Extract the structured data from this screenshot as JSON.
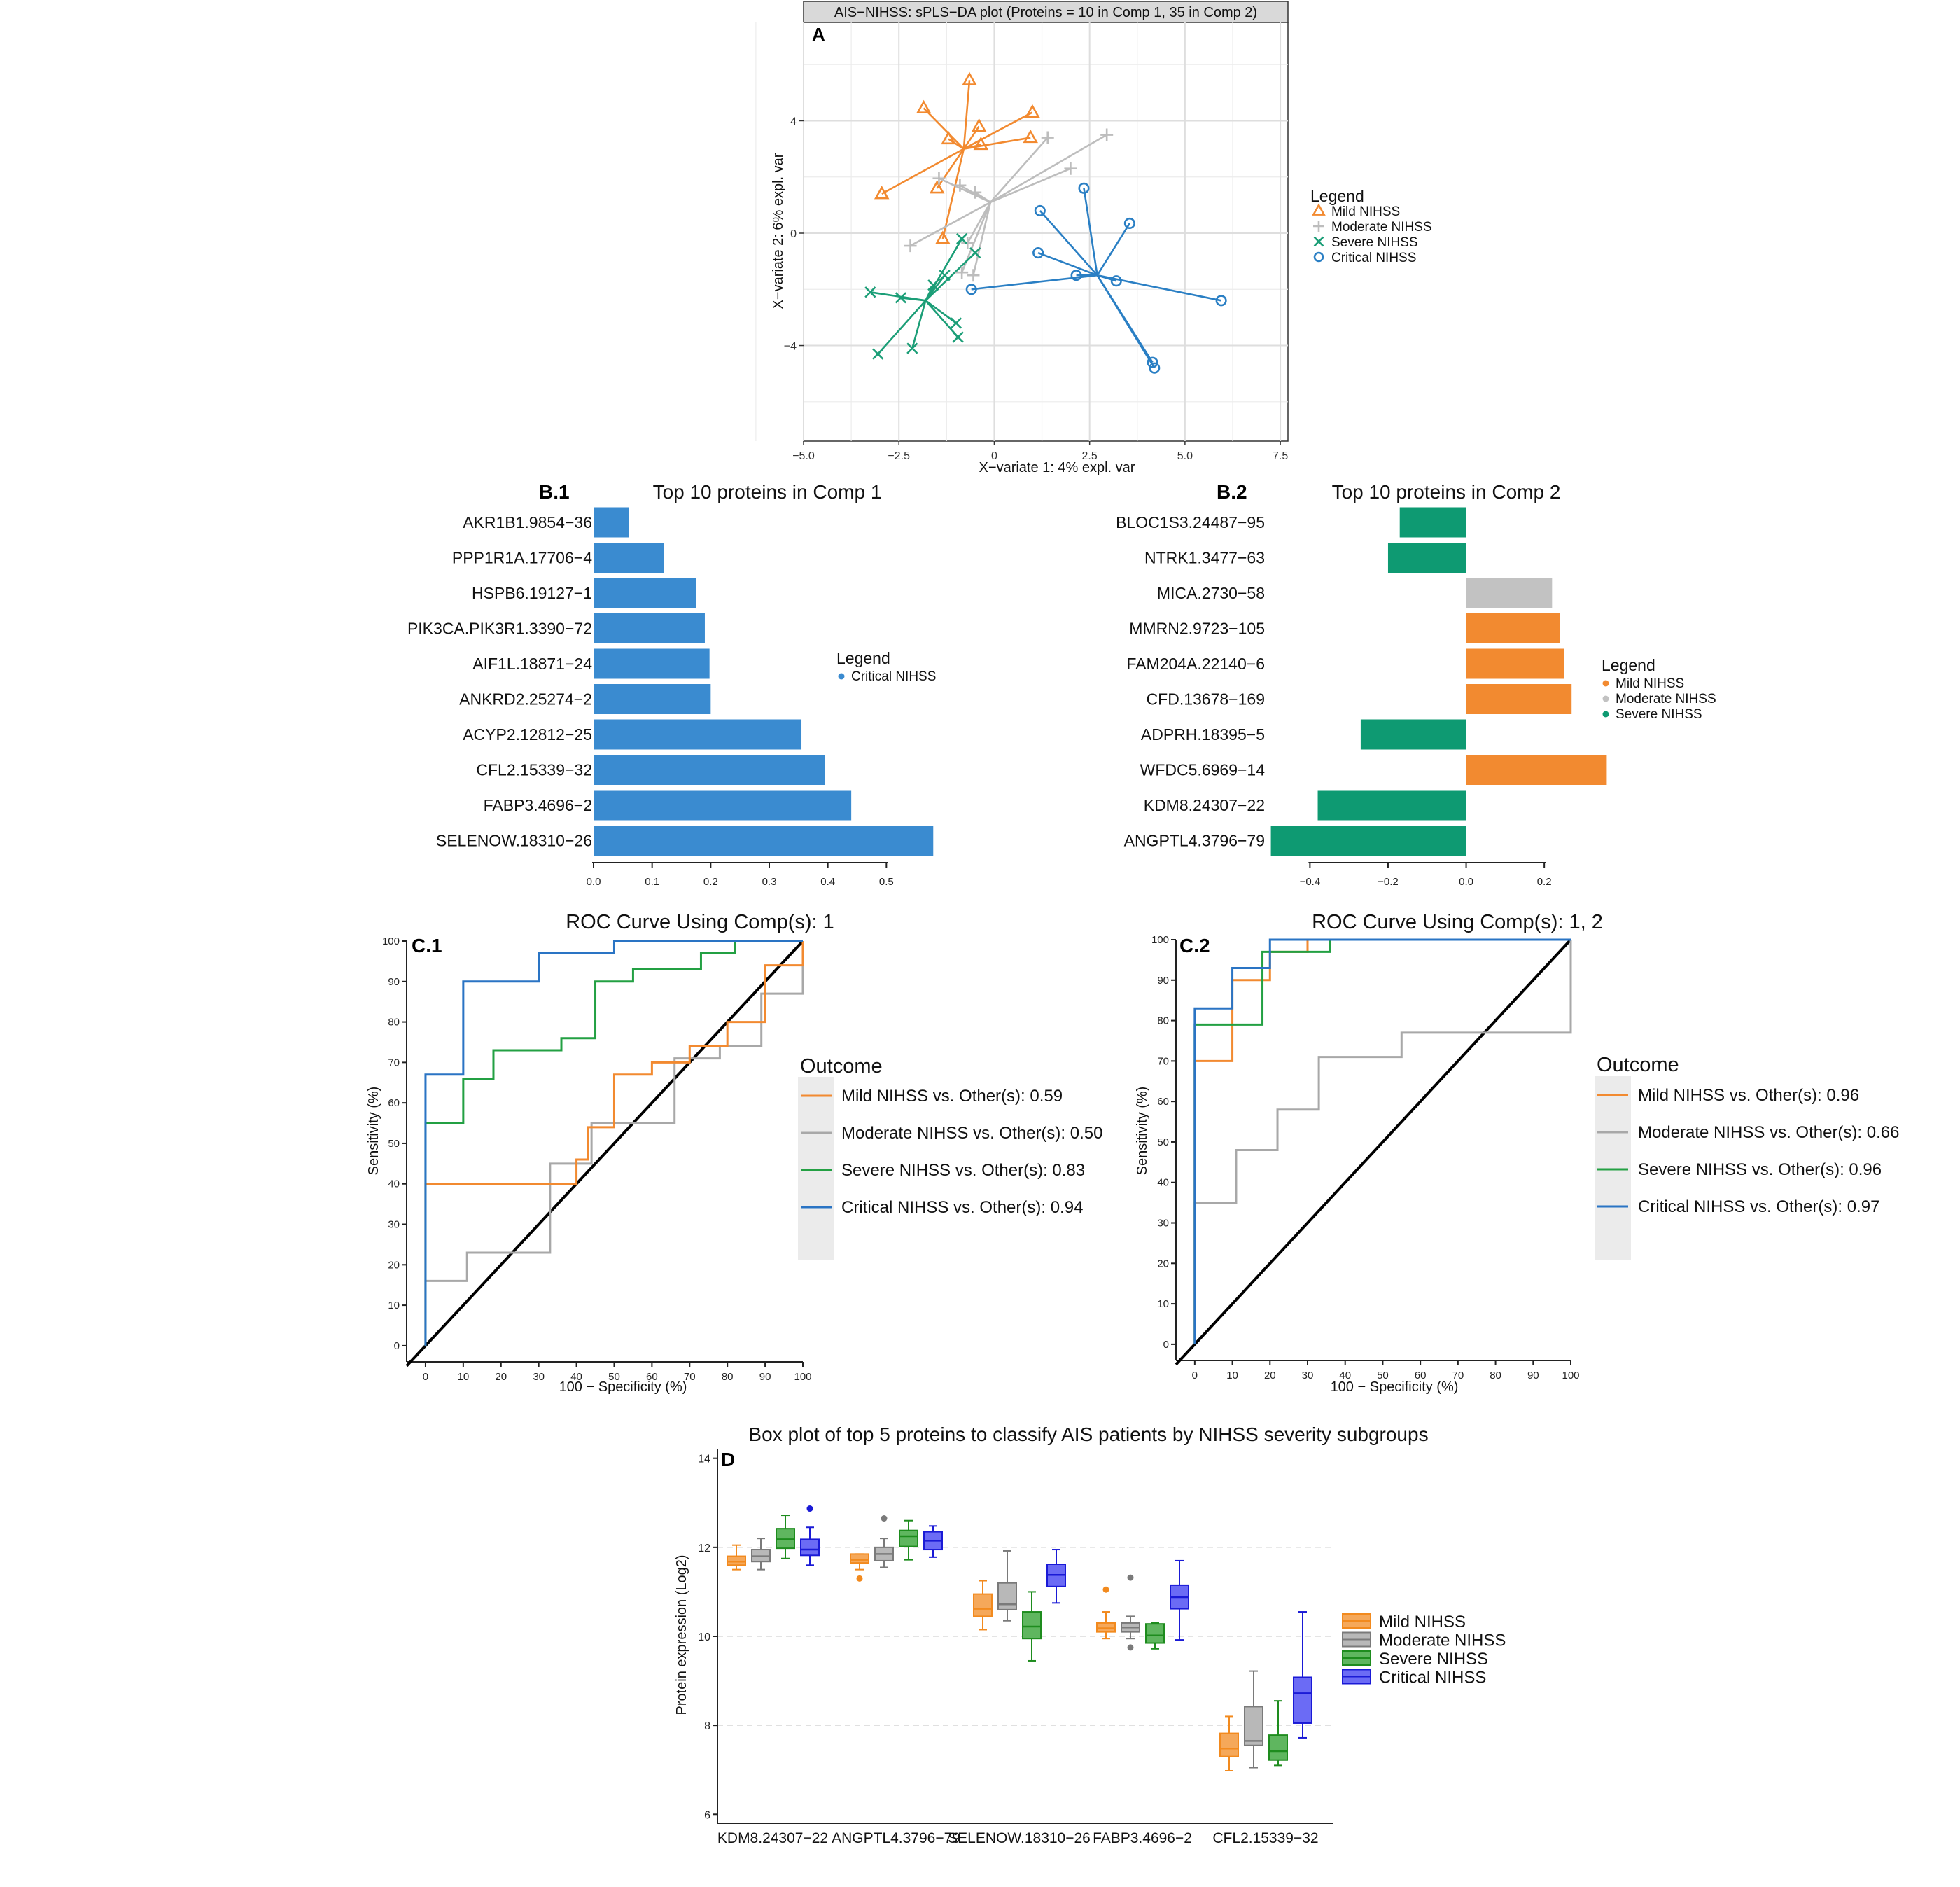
{
  "figure": {
    "panel_letters": {
      "A": "A",
      "B1": "B.1",
      "B2": "B.2",
      "C1": "C.1",
      "C2": "C.2",
      "D": "D"
    },
    "colors": {
      "mild": "#f28a30",
      "moderate": "#bdbdbd",
      "severe": "#1b9e77",
      "critical": "#2a7fc4",
      "bar_blue": "#3a8bd0",
      "bar_green": "#0e9a72",
      "bar_orange": "#f28a30",
      "bar_gray": "#c2c2c2",
      "roc_mild": "#f28a30",
      "roc_moderate": "#a8a8a8",
      "roc_severe": "#23a043",
      "roc_critical": "#2a74c4",
      "box_mild": "#f5a85a",
      "box_moderate": "#b8b8b8",
      "box_severe": "#5fb65f",
      "box_critical": "#6b6bf5",
      "box_mild_edge": "#f28a1e",
      "box_moderate_edge": "#7a7a7a",
      "box_severe_edge": "#1e8c1e",
      "box_critical_edge": "#1a1ad6"
    }
  },
  "chart_data": [
    {
      "id": "A",
      "type": "scatter",
      "title": "AIS−NIHSS: sPLS−DA plot (Proteins = 10 in Comp 1, 35 in Comp 2)",
      "xlabel": "X−variate 1: 4% expl. var",
      "ylabel": "X−variate 2: 6% expl. var",
      "xlim": [
        -5.0,
        7.7
      ],
      "ylim": [
        -7.4,
        7.5
      ],
      "xticks": [
        -5.0,
        -2.5,
        0,
        2.5,
        5.0,
        7.5
      ],
      "xtick_labels": [
        "−5.0",
        "−2.5",
        "0",
        "2.5",
        "5.0",
        "7.5"
      ],
      "yticks": [
        -4,
        0,
        4
      ],
      "ytick_labels": [
        "−4",
        "0",
        "4"
      ],
      "grid": true,
      "legend_title": "Legend",
      "legend_position": "right",
      "series": [
        {
          "name": "Mild NIHSS",
          "marker": "triangle",
          "centroid": [
            -0.8,
            3.0
          ],
          "points": [
            [
              -0.65,
              5.45
            ],
            [
              -1.85,
              4.45
            ],
            [
              -1.2,
              3.35
            ],
            [
              -0.4,
              3.8
            ],
            [
              1.0,
              4.3
            ],
            [
              0.95,
              3.4
            ],
            [
              -0.35,
              3.15
            ],
            [
              -1.5,
              1.6
            ],
            [
              -2.95,
              1.4
            ],
            [
              -1.35,
              -0.2
            ]
          ]
        },
        {
          "name": "Moderate NIHSS",
          "marker": "plus",
          "centroid": [
            -0.1,
            1.1
          ],
          "points": [
            [
              1.4,
              3.4
            ],
            [
              2.95,
              3.5
            ],
            [
              2.0,
              2.3
            ],
            [
              -1.45,
              1.95
            ],
            [
              -0.9,
              1.7
            ],
            [
              -0.5,
              1.45
            ],
            [
              -2.2,
              -0.45
            ],
            [
              -0.55,
              -1.5
            ],
            [
              -0.85,
              -1.4
            ],
            [
              -0.7,
              -0.35
            ]
          ]
        },
        {
          "name": "Severe NIHSS",
          "marker": "x",
          "centroid": [
            -1.8,
            -2.4
          ],
          "points": [
            [
              -0.85,
              -0.2
            ],
            [
              -0.5,
              -0.7
            ],
            [
              -1.6,
              -1.85
            ],
            [
              -3.25,
              -2.1
            ],
            [
              -2.45,
              -2.3
            ],
            [
              -1.3,
              -1.5
            ],
            [
              -1.0,
              -3.2
            ],
            [
              -0.95,
              -3.7
            ],
            [
              -2.15,
              -4.1
            ],
            [
              -3.05,
              -4.3
            ]
          ]
        },
        {
          "name": "Critical NIHSS",
          "marker": "circle",
          "centroid": [
            2.7,
            -1.5
          ],
          "points": [
            [
              2.35,
              1.6
            ],
            [
              1.2,
              0.8
            ],
            [
              3.55,
              0.35
            ],
            [
              1.15,
              -0.7
            ],
            [
              -0.6,
              -2.0
            ],
            [
              2.15,
              -1.5
            ],
            [
              3.2,
              -1.7
            ],
            [
              5.95,
              -2.4
            ],
            [
              4.15,
              -4.6
            ],
            [
              4.2,
              -4.8
            ]
          ]
        }
      ]
    },
    {
      "id": "B.1",
      "type": "bar",
      "orientation": "horizontal",
      "title": "Top 10 proteins in Comp 1",
      "categories": [
        "AKR1B1.9854−36",
        "PPP1R1A.17706−4",
        "HSPB6.19127−1",
        "PIK3CA.PIK3R1.3390−72",
        "AIF1L.18871−24",
        "ANKRD2.25274−2",
        "ACYP2.12812−25",
        "CFL2.15339−32",
        "FABP3.4696−2",
        "SELENOW.18310−26"
      ],
      "values": [
        0.06,
        0.12,
        0.175,
        0.19,
        0.198,
        0.2,
        0.355,
        0.395,
        0.44,
        0.58
      ],
      "groups": [
        "Critical NIHSS",
        "Critical NIHSS",
        "Critical NIHSS",
        "Critical NIHSS",
        "Critical NIHSS",
        "Critical NIHSS",
        "Critical NIHSS",
        "Critical NIHSS",
        "Critical NIHSS",
        "Critical NIHSS"
      ],
      "xlim": [
        0,
        0.6
      ],
      "xticks": [
        0.0,
        0.1,
        0.2,
        0.3,
        0.4,
        0.5
      ],
      "xtick_labels": [
        "0.0",
        "0.1",
        "0.2",
        "0.3",
        "0.4",
        "0.5"
      ],
      "legend_title": "Legend",
      "legend": [
        "Critical NIHSS"
      ],
      "legend_position": "right"
    },
    {
      "id": "B.2",
      "type": "bar",
      "orientation": "horizontal",
      "title": "Top 10 proteins in Comp 2",
      "categories": [
        "BLOC1S3.24487−95",
        "NTRK1.3477−63",
        "MICA.2730−58",
        "MMRN2.9723−105",
        "FAM204A.22140−6",
        "CFD.13678−169",
        "ADPRH.18395−5",
        "WFDC5.6969−14",
        "KDM8.24307−22",
        "ANGPTL4.3796−79"
      ],
      "values": [
        -0.17,
        -0.2,
        0.22,
        0.24,
        0.25,
        0.27,
        -0.27,
        0.36,
        -0.38,
        -0.5
      ],
      "groups": [
        "Severe NIHSS",
        "Severe NIHSS",
        "Moderate NIHSS",
        "Mild NIHSS",
        "Mild NIHSS",
        "Mild NIHSS",
        "Severe NIHSS",
        "Mild NIHSS",
        "Severe NIHSS",
        "Severe NIHSS"
      ],
      "xlim": [
        -0.51,
        0.37
      ],
      "xticks": [
        -0.4,
        -0.2,
        0.0,
        0.2
      ],
      "xtick_labels": [
        "−0.4",
        "−0.2",
        "0.0",
        "0.2"
      ],
      "legend_title": "Legend",
      "legend": [
        "Mild NIHSS",
        "Moderate NIHSS",
        "Severe NIHSS"
      ],
      "legend_position": "right"
    },
    {
      "id": "C.1",
      "type": "line",
      "title": "ROC Curve Using Comp(s): 1",
      "xlabel": "100 − Specificity (%)",
      "ylabel": "Sensitivity (%)",
      "xlim": [
        -5,
        100
      ],
      "ylim": [
        -4,
        100
      ],
      "xticks": [
        0,
        10,
        20,
        30,
        40,
        50,
        60,
        70,
        80,
        90,
        100
      ],
      "yticks": [
        0,
        10,
        20,
        30,
        40,
        50,
        60,
        70,
        80,
        90,
        100
      ],
      "legend_title": "Outcome",
      "legend_position": "right",
      "series": [
        {
          "name": "Mild NIHSS vs. Other(s): 0.59",
          "class": "mild",
          "x": [
            0,
            0,
            40,
            40,
            43,
            43,
            50,
            50,
            60,
            60,
            70,
            70,
            80,
            80,
            90,
            90,
            100,
            100
          ],
          "y": [
            0,
            40,
            40,
            46,
            46,
            54,
            54,
            67,
            67,
            70,
            70,
            74,
            74,
            80,
            80,
            94,
            94,
            100
          ]
        },
        {
          "name": "Moderate NIHSS vs. Other(s): 0.50",
          "class": "moderate",
          "x": [
            0,
            0,
            11,
            11,
            33,
            33,
            44,
            44,
            66,
            66,
            78,
            78,
            89,
            89,
            100,
            100
          ],
          "y": [
            0,
            16,
            16,
            23,
            23,
            45,
            45,
            55,
            55,
            71,
            71,
            74,
            74,
            87,
            87,
            100
          ]
        },
        {
          "name": "Severe NIHSS vs. Other(s): 0.83",
          "class": "severe",
          "x": [
            0,
            0,
            10,
            10,
            18,
            18,
            36,
            36,
            45,
            45,
            55,
            55,
            73,
            73,
            82,
            82,
            100
          ],
          "y": [
            0,
            55,
            55,
            66,
            66,
            73,
            73,
            76,
            76,
            90,
            90,
            93,
            93,
            97,
            97,
            100,
            100
          ]
        },
        {
          "name": "Critical NIHSS vs. Other(s): 0.94",
          "class": "critical",
          "x": [
            0,
            0,
            10,
            10,
            30,
            30,
            50,
            50,
            80,
            80,
            100
          ],
          "y": [
            0,
            67,
            67,
            90,
            90,
            97,
            97,
            100,
            100,
            100,
            100
          ]
        },
        {
          "name": "diagonal",
          "class": "diagonal",
          "x": [
            -5,
            100
          ],
          "y": [
            -5,
            100
          ]
        }
      ]
    },
    {
      "id": "C.2",
      "type": "line",
      "title": "ROC Curve Using Comp(s): 1, 2",
      "xlabel": "100 − Specificity (%)",
      "ylabel": "Sensitivity (%)",
      "xlim": [
        -5,
        100
      ],
      "ylim": [
        -4,
        100
      ],
      "xticks": [
        0,
        10,
        20,
        30,
        40,
        50,
        60,
        70,
        80,
        90,
        100
      ],
      "yticks": [
        0,
        10,
        20,
        30,
        40,
        50,
        60,
        70,
        80,
        90,
        100
      ],
      "legend_title": "Outcome",
      "legend_position": "right",
      "series": [
        {
          "name": "Mild NIHSS vs. Other(s): 0.96",
          "class": "mild",
          "x": [
            0,
            0,
            10,
            10,
            20,
            20,
            30,
            30,
            100
          ],
          "y": [
            0,
            70,
            70,
            90,
            90,
            97,
            97,
            100,
            100
          ]
        },
        {
          "name": "Moderate NIHSS vs. Other(s): 0.66",
          "class": "moderate",
          "x": [
            0,
            0,
            11,
            11,
            22,
            22,
            33,
            33,
            55,
            55,
            100,
            100
          ],
          "y": [
            0,
            35,
            35,
            48,
            48,
            58,
            58,
            71,
            71,
            77,
            77,
            100
          ]
        },
        {
          "name": "Severe NIHSS vs. Other(s): 0.96",
          "class": "severe",
          "x": [
            0,
            0,
            18,
            18,
            36,
            36,
            100
          ],
          "y": [
            0,
            79,
            79,
            97,
            97,
            100,
            100
          ]
        },
        {
          "name": "Critical NIHSS vs. Other(s): 0.97",
          "class": "critical",
          "x": [
            0,
            0,
            10,
            10,
            20,
            20,
            100
          ],
          "y": [
            0,
            83,
            83,
            93,
            93,
            100,
            100
          ]
        },
        {
          "name": "diagonal",
          "class": "diagonal",
          "x": [
            -5,
            100
          ],
          "y": [
            -5,
            100
          ]
        }
      ]
    },
    {
      "id": "D",
      "type": "box",
      "title": "Box plot of top 5 proteins to classify AIS patients by NIHSS severity subgroups",
      "xlabel": "",
      "ylabel": "Protein expression (Log2)",
      "ylim": [
        5.8,
        14.2
      ],
      "yticks": [
        6,
        8,
        10,
        12,
        14
      ],
      "grid": true,
      "legend_position": "right",
      "groups": [
        "Mild NIHSS",
        "Moderate NIHSS",
        "Severe NIHSS",
        "Critical NIHSS"
      ],
      "categories": [
        "KDM8.24307−22",
        "ANGPTL4.3796−79",
        "SELENOW.18310−26",
        "FABP3.4696−2",
        "CFL2.15339−32"
      ],
      "boxes": [
        [
          {
            "min": 11.5,
            "q1": 11.6,
            "median": 11.68,
            "q3": 11.8,
            "max": 12.05,
            "outliers": []
          },
          {
            "min": 11.5,
            "q1": 11.68,
            "median": 11.8,
            "q3": 11.95,
            "max": 12.2,
            "outliers": []
          },
          {
            "min": 11.75,
            "q1": 11.98,
            "median": 12.18,
            "q3": 12.42,
            "max": 12.72,
            "outliers": []
          },
          {
            "min": 11.6,
            "q1": 11.82,
            "median": 11.95,
            "q3": 12.18,
            "max": 12.45,
            "outliers": [
              12.87
            ]
          }
        ],
        [
          {
            "min": 11.5,
            "q1": 11.65,
            "median": 11.72,
            "q3": 11.85,
            "max": 11.85,
            "outliers": [
              11.3
            ]
          },
          {
            "min": 11.55,
            "q1": 11.7,
            "median": 11.85,
            "q3": 12.0,
            "max": 12.2,
            "outliers": [
              12.65
            ]
          },
          {
            "min": 11.72,
            "q1": 12.02,
            "median": 12.25,
            "q3": 12.38,
            "max": 12.6,
            "outliers": []
          },
          {
            "min": 11.78,
            "q1": 11.95,
            "median": 12.15,
            "q3": 12.35,
            "max": 12.48,
            "outliers": []
          }
        ],
        [
          {
            "min": 10.15,
            "q1": 10.45,
            "median": 10.62,
            "q3": 10.95,
            "max": 11.25,
            "outliers": []
          },
          {
            "min": 10.35,
            "q1": 10.6,
            "median": 10.72,
            "q3": 11.2,
            "max": 11.92,
            "outliers": []
          },
          {
            "min": 9.45,
            "q1": 9.95,
            "median": 10.22,
            "q3": 10.55,
            "max": 11.0,
            "outliers": []
          },
          {
            "min": 10.75,
            "q1": 11.12,
            "median": 11.38,
            "q3": 11.62,
            "max": 11.95,
            "outliers": []
          }
        ],
        [
          {
            "min": 9.95,
            "q1": 10.1,
            "median": 10.18,
            "q3": 10.3,
            "max": 10.55,
            "outliers": [
              11.05
            ]
          },
          {
            "min": 9.95,
            "q1": 10.1,
            "median": 10.2,
            "q3": 10.3,
            "max": 10.45,
            "outliers": [
              11.32,
              9.75
            ]
          },
          {
            "min": 9.72,
            "q1": 9.85,
            "median": 10.02,
            "q3": 10.28,
            "max": 10.3,
            "outliers": []
          },
          {
            "min": 9.92,
            "q1": 10.62,
            "median": 10.88,
            "q3": 11.15,
            "max": 11.7,
            "outliers": []
          }
        ],
        [
          {
            "min": 6.98,
            "q1": 7.3,
            "median": 7.48,
            "q3": 7.82,
            "max": 8.2,
            "outliers": []
          },
          {
            "min": 7.05,
            "q1": 7.55,
            "median": 7.65,
            "q3": 8.42,
            "max": 9.22,
            "outliers": []
          },
          {
            "min": 7.1,
            "q1": 7.22,
            "median": 7.42,
            "q3": 7.78,
            "max": 8.55,
            "outliers": []
          },
          {
            "min": 7.72,
            "q1": 8.05,
            "median": 8.72,
            "q3": 9.08,
            "max": 10.55,
            "outliers": []
          }
        ]
      ]
    }
  ]
}
